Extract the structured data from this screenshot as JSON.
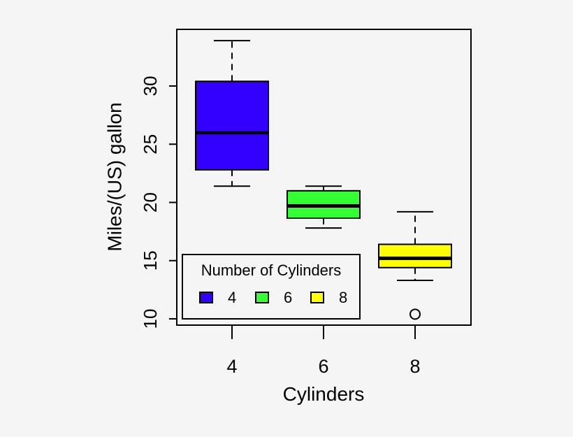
{
  "chart_data": {
    "type": "box",
    "title": "",
    "xlabel": "Cylinders",
    "ylabel": "Miles/(US) gallon",
    "categories": [
      "4",
      "6",
      "8"
    ],
    "ylim": [
      10,
      34
    ],
    "yticks": [
      10,
      15,
      20,
      25,
      30
    ],
    "grid": false,
    "boxes": [
      {
        "category": "4",
        "color": "#3300ff",
        "whisker_low": 21.4,
        "q1": 22.8,
        "median": 26.0,
        "q3": 30.4,
        "whisker_high": 33.9,
        "outliers": []
      },
      {
        "category": "6",
        "color": "#33ff33",
        "whisker_low": 17.8,
        "q1": 18.65,
        "median": 19.7,
        "q3": 21.0,
        "whisker_high": 21.4,
        "outliers": []
      },
      {
        "category": "8",
        "color": "#ffff00",
        "whisker_low": 13.3,
        "q1": 14.4,
        "median": 15.2,
        "q3": 16.4,
        "whisker_high": 19.2,
        "outliers": [
          10.4
        ]
      }
    ],
    "legend": {
      "title": "Number of Cylinders",
      "position": "bottom-left",
      "entries": [
        {
          "label": "4",
          "color": "#3300ff"
        },
        {
          "label": "6",
          "color": "#33ff33"
        },
        {
          "label": "8",
          "color": "#ffff00"
        }
      ]
    }
  }
}
